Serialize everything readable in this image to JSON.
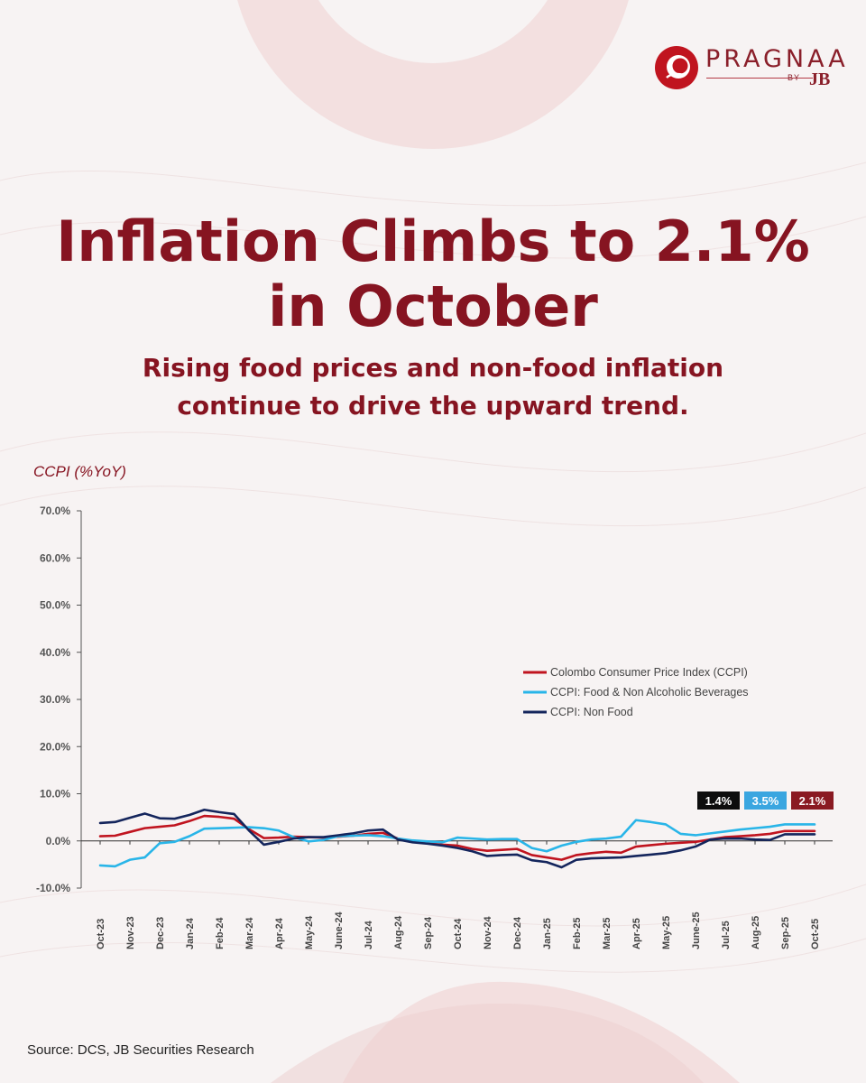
{
  "brand": {
    "name": "PRAGNAA",
    "by": "BY",
    "jb": "JB"
  },
  "title_line1": "Inflation Climbs to 2.1%",
  "title_line2": "in October",
  "subtitle_line1": "Rising food prices and non-food inflation",
  "subtitle_line2": "continue to drive the upward trend.",
  "y_axis_title": "CCPI (%YoY)",
  "source": "Source: DCS, JB Securities Research",
  "colors": {
    "accent": "#861421",
    "ccpi": "#c0141f",
    "food": "#29b5e8",
    "nonfood": "#14255c"
  },
  "chart_data": {
    "type": "line",
    "ylabel": "CCPI (%YoY)",
    "ylim": [
      -10,
      70
    ],
    "yticks": [
      "70.0%",
      "60.0%",
      "50.0%",
      "40.0%",
      "30.0%",
      "20.0%",
      "10.0%",
      "0.0%",
      "-10.0%"
    ],
    "ytick_values": [
      70,
      60,
      50,
      40,
      30,
      20,
      10,
      0,
      -10
    ],
    "categories": [
      "Oct-23",
      "Nov-23",
      "Dec-23",
      "Jan-24",
      "Feb-24",
      "Mar-24",
      "Apr-24",
      "May-24",
      "June-24",
      "Jul-24",
      "Aug-24",
      "Sep-24",
      "Oct-24",
      "Nov-24",
      "Dec-24",
      "Jan-25",
      "Feb-25",
      "Mar-25",
      "Apr-25",
      "May-25",
      "June-25",
      "Jul-25",
      "Aug-25",
      "Sep-25",
      "Oct-25"
    ],
    "x": [
      0,
      0.5,
      1,
      1.5,
      2,
      2.5,
      3,
      3.5,
      4,
      4.5,
      5,
      5.5,
      6,
      6.5,
      7,
      7.5,
      8,
      8.5,
      9,
      9.5,
      10,
      10.5,
      11,
      11.5,
      12,
      12.5,
      13,
      13.5,
      14,
      14.5,
      15,
      15.5,
      16,
      16.5,
      17,
      17.5,
      18,
      18.5,
      19,
      19.5,
      20,
      20.5,
      21,
      21.5,
      22,
      22.5,
      23,
      23.5,
      24
    ],
    "series": [
      {
        "name": "Colombo Consumer Price Index (CCPI)",
        "color": "#c0141f",
        "values": [
          1.0,
          1.1,
          1.9,
          2.7,
          3.0,
          3.3,
          4.2,
          5.3,
          5.1,
          4.7,
          2.5,
          0.6,
          0.7,
          0.9,
          0.8,
          0.7,
          0.9,
          1.1,
          1.5,
          1.7,
          0.5,
          -0.2,
          -0.5,
          -0.8,
          -1.0,
          -1.7,
          -2.1,
          -1.9,
          -1.7,
          -3.0,
          -3.5,
          -4.0,
          -3.0,
          -2.6,
          -2.3,
          -2.5,
          -1.2,
          -0.9,
          -0.6,
          -0.4,
          -0.2,
          0.3,
          0.8,
          1.0,
          1.2,
          1.5,
          2.1,
          2.1,
          2.1
        ]
      },
      {
        "name": "CCPI: Food & Non Alcoholic Beverages",
        "color": "#29b5e8",
        "values": [
          -5.2,
          -5.4,
          -4.0,
          -3.5,
          -0.5,
          -0.2,
          1.0,
          2.6,
          2.7,
          2.8,
          2.9,
          2.7,
          2.2,
          0.8,
          -0.1,
          0.2,
          1.0,
          1.1,
          1.2,
          1.0,
          0.5,
          0.1,
          -0.1,
          -0.3,
          0.7,
          0.5,
          0.3,
          0.4,
          0.4,
          -1.5,
          -2.2,
          -1.0,
          -0.2,
          0.3,
          0.5,
          0.9,
          4.4,
          4.0,
          3.5,
          1.5,
          1.2,
          1.6,
          2.0,
          2.4,
          2.7,
          3.0,
          3.5,
          3.5,
          3.5
        ]
      },
      {
        "name": "CCPI: Non Food",
        "color": "#14255c",
        "values": [
          3.8,
          4.0,
          4.9,
          5.8,
          4.8,
          4.7,
          5.5,
          6.6,
          6.1,
          5.7,
          2.2,
          -0.8,
          -0.2,
          0.5,
          0.8,
          0.8,
          1.2,
          1.6,
          2.2,
          2.4,
          0.3,
          -0.3,
          -0.6,
          -1.0,
          -1.5,
          -2.2,
          -3.2,
          -3.0,
          -2.9,
          -4.1,
          -4.5,
          -5.6,
          -4.0,
          -3.7,
          -3.6,
          -3.5,
          -3.2,
          -2.9,
          -2.6,
          -2.0,
          -1.2,
          0.3,
          0.5,
          0.5,
          0.3,
          0.2,
          1.4,
          1.4,
          1.4
        ]
      }
    ],
    "latest_labels": [
      {
        "text": "1.4%",
        "color": "#0d0d0d"
      },
      {
        "text": "3.5%",
        "color": "#3aa6e0"
      },
      {
        "text": "2.1%",
        "color": "#8a1a22"
      }
    ],
    "legend_position": "right-middle",
    "grid": false
  }
}
